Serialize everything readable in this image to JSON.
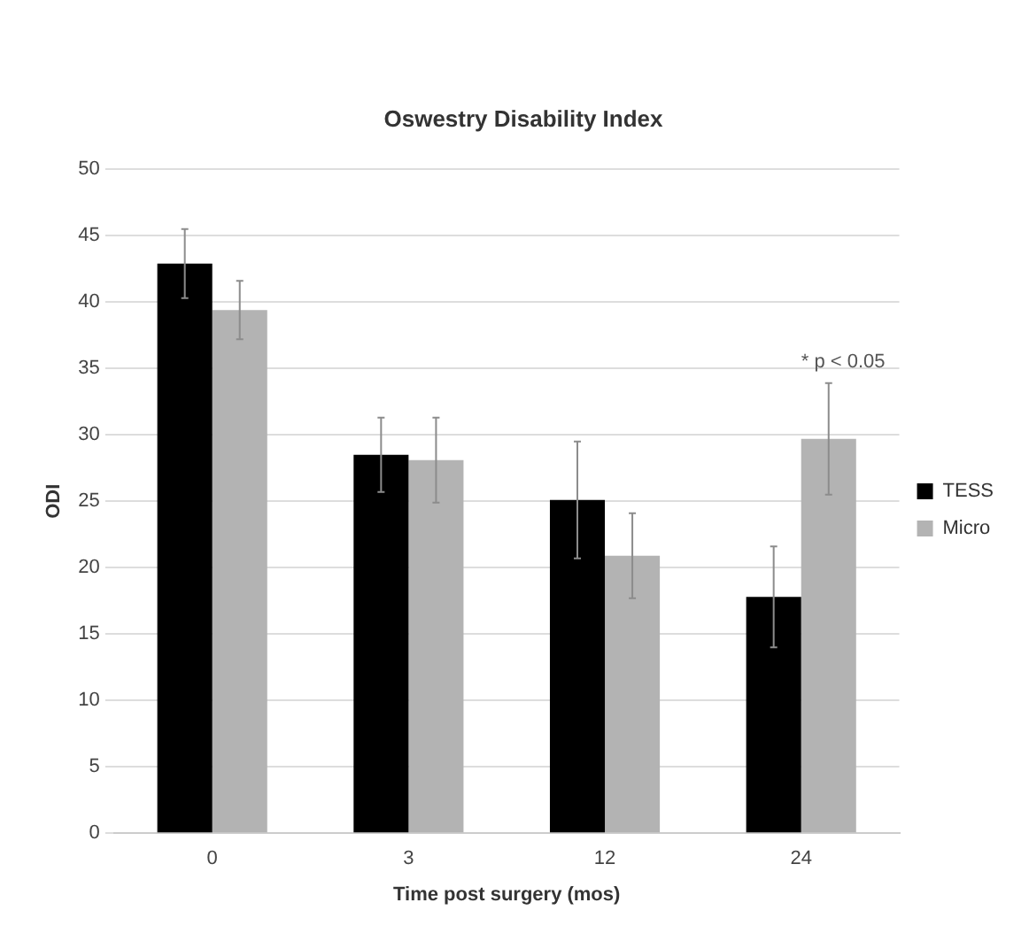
{
  "chart_data": {
    "type": "bar",
    "title": "Oswestry Disability Index",
    "xlabel": "Time post surgery (mos)",
    "ylabel": "ODI",
    "categories": [
      "0",
      "3",
      "12",
      "24"
    ],
    "series": [
      {
        "name": "TESS",
        "color": "#000000",
        "values": [
          42.9,
          28.5,
          25.1,
          17.8
        ],
        "errors": [
          2.6,
          2.8,
          4.4,
          3.8
        ]
      },
      {
        "name": "Micro",
        "color": "#b3b3b3",
        "values": [
          39.4,
          28.1,
          20.9,
          29.7
        ],
        "errors": [
          2.2,
          3.2,
          3.2,
          4.2
        ]
      }
    ],
    "ylim": [
      0,
      50
    ],
    "yticks": [
      0,
      5,
      10,
      15,
      20,
      25,
      30,
      35,
      40,
      45,
      50
    ],
    "grid": "y",
    "legend": "right",
    "annotations": [
      "* p < 0.05"
    ]
  }
}
